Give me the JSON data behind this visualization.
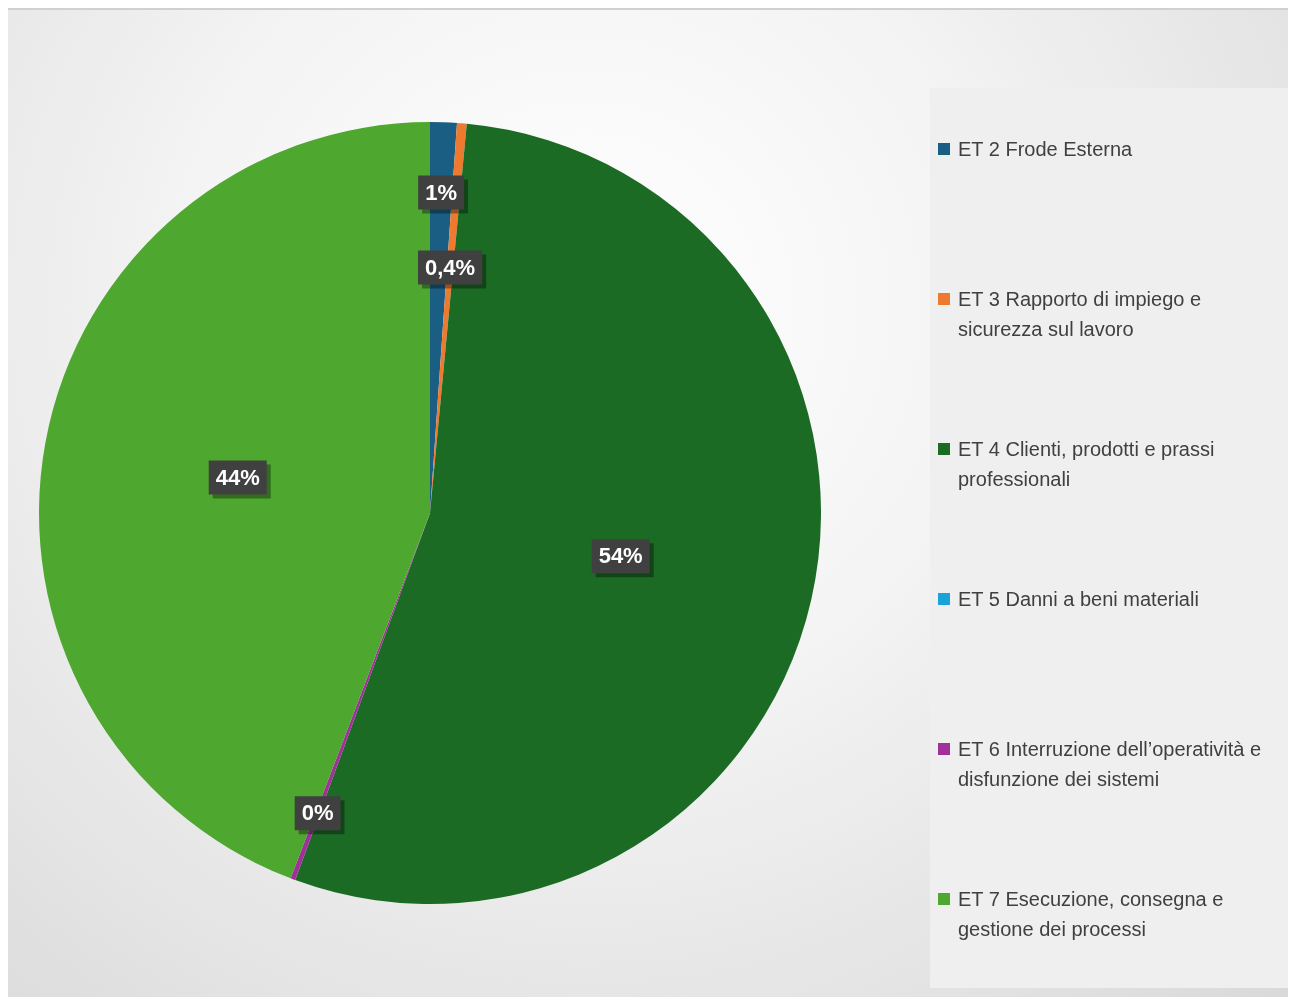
{
  "chart_data": {
    "type": "pie",
    "categories": [
      "ET 2 Frode Esterna",
      "ET 3 Rapporto di impiego e sicurezza sul lavoro",
      "ET 4 Clienti, prodotti e prassi professionali",
      "ET 5 Danni a beni materiali",
      "ET 6 Interruzione dell’operatività e disfunzione dei sistemi",
      "ET 7 Esecuzione, consegna e gestione dei processi"
    ],
    "values": [
      1.1,
      0.4,
      54.1,
      0,
      0.2,
      44.2
    ],
    "colors": [
      "#1a5e84",
      "#ee7a30",
      "#1b6b25",
      "#1aa3d9",
      "#a0309a",
      "#4ea72e"
    ],
    "value_labels": [
      "1%",
      "0,4%",
      "54%",
      null,
      "0%",
      "44%"
    ],
    "legend": "right"
  }
}
